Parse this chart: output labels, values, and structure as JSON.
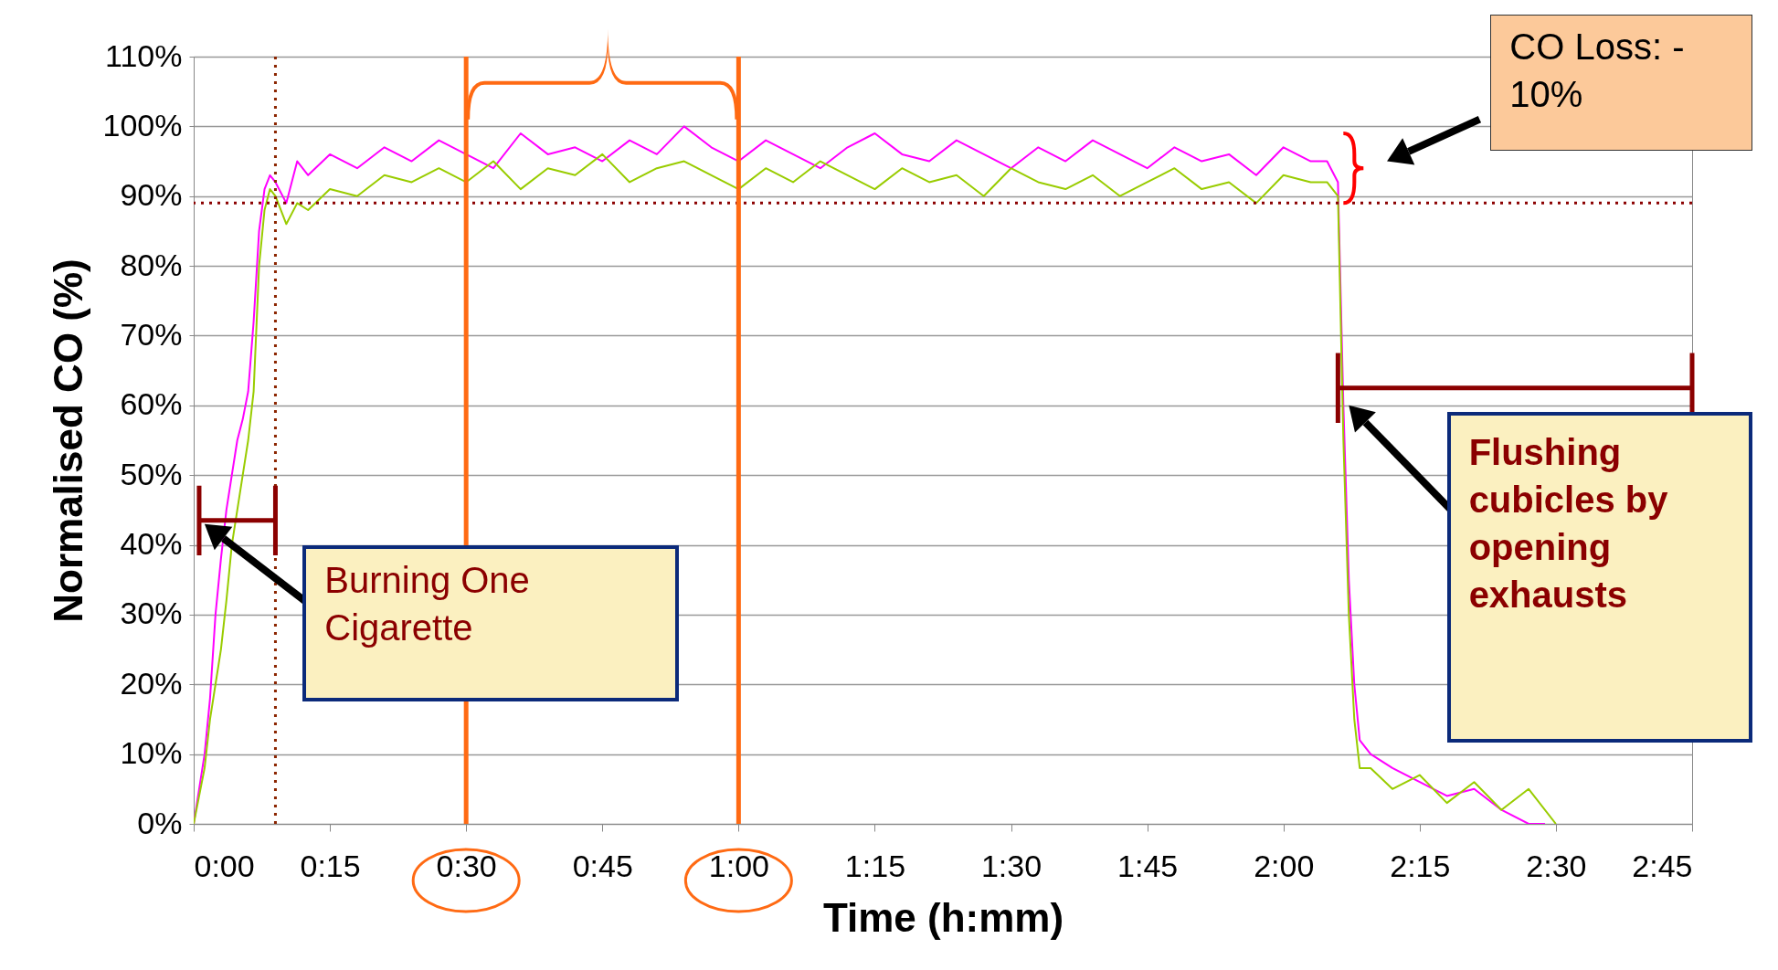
{
  "chart_data": {
    "type": "line",
    "xlabel": "Time (h:mm)",
    "ylabel": "Normalised CO (%)",
    "xlim": [
      0,
      2.75
    ],
    "ylim": [
      0,
      110
    ],
    "xticks": [
      {
        "value": 0,
        "label": "0:00"
      },
      {
        "value": 0.25,
        "label": "0:15"
      },
      {
        "value": 0.5,
        "label": "0:30"
      },
      {
        "value": 0.75,
        "label": "0:45"
      },
      {
        "value": 1,
        "label": "1:00"
      },
      {
        "value": 1.25,
        "label": "1:15"
      },
      {
        "value": 1.5,
        "label": "1:30"
      },
      {
        "value": 1.75,
        "label": "1:45"
      },
      {
        "value": 2,
        "label": "2:00"
      },
      {
        "value": 2.25,
        "label": "2:15"
      },
      {
        "value": 2.5,
        "label": "2:30"
      },
      {
        "value": 2.75,
        "label": "2:45"
      }
    ],
    "yticks": [
      {
        "value": 0,
        "label": "0%"
      },
      {
        "value": 10,
        "label": "10%"
      },
      {
        "value": 20,
        "label": "20%"
      },
      {
        "value": 30,
        "label": "30%"
      },
      {
        "value": 40,
        "label": "40%"
      },
      {
        "value": 50,
        "label": "50%"
      },
      {
        "value": 60,
        "label": "60%"
      },
      {
        "value": 70,
        "label": "70%"
      },
      {
        "value": 80,
        "label": "80%"
      },
      {
        "value": 90,
        "label": "90%"
      },
      {
        "value": 100,
        "label": "100%"
      },
      {
        "value": 110,
        "label": "110%"
      }
    ],
    "grid": "y",
    "marker": "none",
    "line_style": "solid",
    "series": [
      {
        "color": "#ff00ff",
        "x": [
          0,
          0.01,
          0.02,
          0.03,
          0.04,
          0.05,
          0.06,
          0.07,
          0.08,
          0.09,
          0.1,
          0.11,
          0.12,
          0.13,
          0.14,
          0.15,
          0.17,
          0.19,
          0.21,
          0.25,
          0.3,
          0.35,
          0.4,
          0.45,
          0.5,
          0.55,
          0.6,
          0.65,
          0.7,
          0.75,
          0.8,
          0.85,
          0.9,
          0.95,
          1,
          1.05,
          1.1,
          1.15,
          1.2,
          1.25,
          1.3,
          1.35,
          1.4,
          1.45,
          1.5,
          1.55,
          1.6,
          1.65,
          1.7,
          1.75,
          1.8,
          1.85,
          1.9,
          1.95,
          2,
          2.05,
          2.08,
          2.1,
          2.11,
          2.12,
          2.13,
          2.14,
          2.16,
          2.2,
          2.25,
          2.3,
          2.35,
          2.4,
          2.45,
          2.48
        ],
        "values": [
          0,
          5,
          10,
          18,
          30,
          38,
          45,
          50,
          55,
          58,
          62,
          72,
          85,
          91,
          93,
          92,
          89,
          95,
          93,
          96,
          94,
          97,
          95,
          98,
          96,
          94,
          99,
          96,
          97,
          95,
          98,
          96,
          100,
          97,
          95,
          98,
          96,
          94,
          97,
          99,
          96,
          95,
          98,
          96,
          94,
          97,
          95,
          98,
          96,
          94,
          97,
          95,
          96,
          93,
          97,
          95,
          95,
          92,
          60,
          35,
          20,
          12,
          10,
          8,
          6,
          4,
          5,
          2,
          0,
          0
        ]
      },
      {
        "color": "#99cc00",
        "x": [
          0,
          0.02,
          0.03,
          0.04,
          0.05,
          0.06,
          0.07,
          0.08,
          0.09,
          0.1,
          0.11,
          0.12,
          0.13,
          0.14,
          0.15,
          0.17,
          0.19,
          0.21,
          0.25,
          0.3,
          0.35,
          0.4,
          0.45,
          0.5,
          0.55,
          0.6,
          0.65,
          0.7,
          0.75,
          0.8,
          0.85,
          0.9,
          0.95,
          1,
          1.05,
          1.1,
          1.15,
          1.2,
          1.25,
          1.3,
          1.35,
          1.4,
          1.45,
          1.5,
          1.55,
          1.6,
          1.65,
          1.7,
          1.75,
          1.8,
          1.85,
          1.9,
          1.95,
          2,
          2.05,
          2.08,
          2.1,
          2.11,
          2.12,
          2.13,
          2.14,
          2.16,
          2.2,
          2.25,
          2.3,
          2.35,
          2.4,
          2.45,
          2.5
        ],
        "values": [
          0,
          8,
          15,
          20,
          25,
          32,
          40,
          45,
          50,
          55,
          62,
          80,
          88,
          91,
          90,
          86,
          89,
          88,
          91,
          90,
          93,
          92,
          94,
          92,
          95,
          91,
          94,
          93,
          96,
          92,
          94,
          95,
          93,
          91,
          94,
          92,
          95,
          93,
          91,
          94,
          92,
          93,
          90,
          94,
          92,
          91,
          93,
          90,
          92,
          94,
          91,
          92,
          89,
          93,
          92,
          92,
          90,
          55,
          30,
          15,
          8,
          8,
          5,
          7,
          3,
          6,
          2,
          5,
          0
        ]
      }
    ],
    "ref_lines": [
      {
        "axis": "y",
        "value": 89,
        "color": "#8b0000",
        "line_style": "dotted"
      },
      {
        "axis": "x",
        "value": 0.15,
        "color": "#8b2500",
        "line_style": "dotted"
      },
      {
        "axis": "x",
        "value": 0.5,
        "color": "#ff6a13",
        "line_style": "solid"
      },
      {
        "axis": "x",
        "value": 1,
        "color": "#ff6a13",
        "line_style": "solid"
      }
    ],
    "annotations": [
      "Burning One Cigarette",
      "Flushing cubicles by opening exhausts",
      "CO Loss: - 10%"
    ]
  }
}
